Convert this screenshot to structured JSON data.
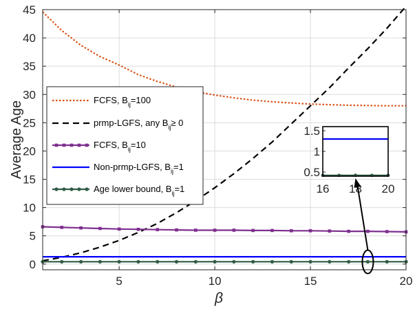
{
  "chart_data": {
    "type": "line",
    "xlabel": "β",
    "ylabel": "Average Age",
    "xlim": [
      1,
      20
    ],
    "ylim": [
      -1,
      45
    ],
    "x_ticks": [
      5,
      10,
      15,
      20
    ],
    "y_ticks": [
      0,
      5,
      10,
      15,
      20,
      25,
      30,
      35,
      40,
      45
    ],
    "grid": true,
    "legend_position": "left-middle",
    "series": [
      {
        "key": "fcfs100",
        "name": "FCFS, B",
        "name_sub": "ij",
        "name_suffix": "=100",
        "color": "#D95319",
        "style": "dotted",
        "marker": "none",
        "x": [
          1,
          2,
          3,
          4,
          5,
          6,
          7,
          8,
          9,
          10,
          11,
          12,
          13,
          14,
          15,
          16,
          17,
          18,
          19,
          20
        ],
        "y": [
          44.6,
          41.3,
          38.7,
          36.7,
          35.2,
          33.5,
          32.3,
          31.3,
          30.5,
          29.9,
          29.4,
          29.0,
          28.7,
          28.5,
          28.3,
          28.2,
          28.1,
          28.05,
          28.0,
          28.0
        ]
      },
      {
        "key": "prmp",
        "name": "prmp-LGFS, any B",
        "name_sub": "ij",
        "name_suffix": "≥ 0",
        "color": "#000000",
        "style": "dashed",
        "marker": "none",
        "x": [
          1,
          2,
          3,
          4,
          5,
          6,
          7,
          8,
          9,
          10,
          11,
          12,
          13,
          14,
          15,
          16,
          17,
          18,
          19,
          20
        ],
        "y": [
          0.6,
          1.2,
          2.0,
          3.0,
          4.2,
          5.6,
          7.2,
          9.1,
          11.2,
          13.5,
          16.0,
          18.7,
          21.6,
          24.8,
          28.0,
          31.2,
          34.7,
          38.1,
          41.7,
          45.6
        ]
      },
      {
        "key": "fcfs10",
        "name": "FCFS, B",
        "name_sub": "ij",
        "name_suffix": "=10",
        "color": "#7E2F8E",
        "style": "solid",
        "marker": "square",
        "x": [
          1,
          2,
          3,
          4,
          5,
          6,
          7,
          8,
          9,
          10,
          11,
          12,
          13,
          14,
          15,
          16,
          17,
          18,
          19,
          20
        ],
        "y": [
          6.6,
          6.5,
          6.4,
          6.3,
          6.2,
          6.15,
          6.1,
          6.05,
          6.0,
          6.0,
          6.0,
          5.95,
          5.95,
          5.9,
          5.9,
          5.85,
          5.8,
          5.8,
          5.75,
          5.7
        ]
      },
      {
        "key": "nonprmp",
        "name": "Non-prmp-LGFS, B",
        "name_sub": "ij",
        "name_suffix": "=1",
        "color": "#0000FF",
        "style": "solid",
        "marker": "none",
        "x": [
          1,
          20
        ],
        "y": [
          1.3,
          1.3
        ]
      },
      {
        "key": "lowerbound",
        "name": "Age lower bound, B",
        "name_sub": "ij",
        "name_suffix": "=1",
        "color": "#2E5C44",
        "style": "solid",
        "marker": "circle",
        "x": [
          1,
          2,
          3,
          4,
          5,
          6,
          7,
          8,
          9,
          10,
          11,
          12,
          13,
          14,
          15,
          16,
          17,
          18,
          19,
          20
        ],
        "y": [
          0.42,
          0.42,
          0.42,
          0.42,
          0.42,
          0.42,
          0.42,
          0.42,
          0.42,
          0.42,
          0.42,
          0.42,
          0.42,
          0.42,
          0.42,
          0.42,
          0.42,
          0.42,
          0.42,
          0.42
        ]
      }
    ],
    "inset": {
      "xlim": [
        16,
        20
      ],
      "ylim": [
        0.4,
        1.6
      ],
      "x_ticks": [
        16,
        18,
        20
      ],
      "y_ticks": [
        0.5,
        1,
        1.5
      ],
      "x_tick_labels": [
        "16",
        "18",
        "20"
      ],
      "y_tick_labels": [
        "0.5",
        "1",
        "1.5"
      ],
      "focus_center": [
        18,
        0.4
      ]
    }
  }
}
